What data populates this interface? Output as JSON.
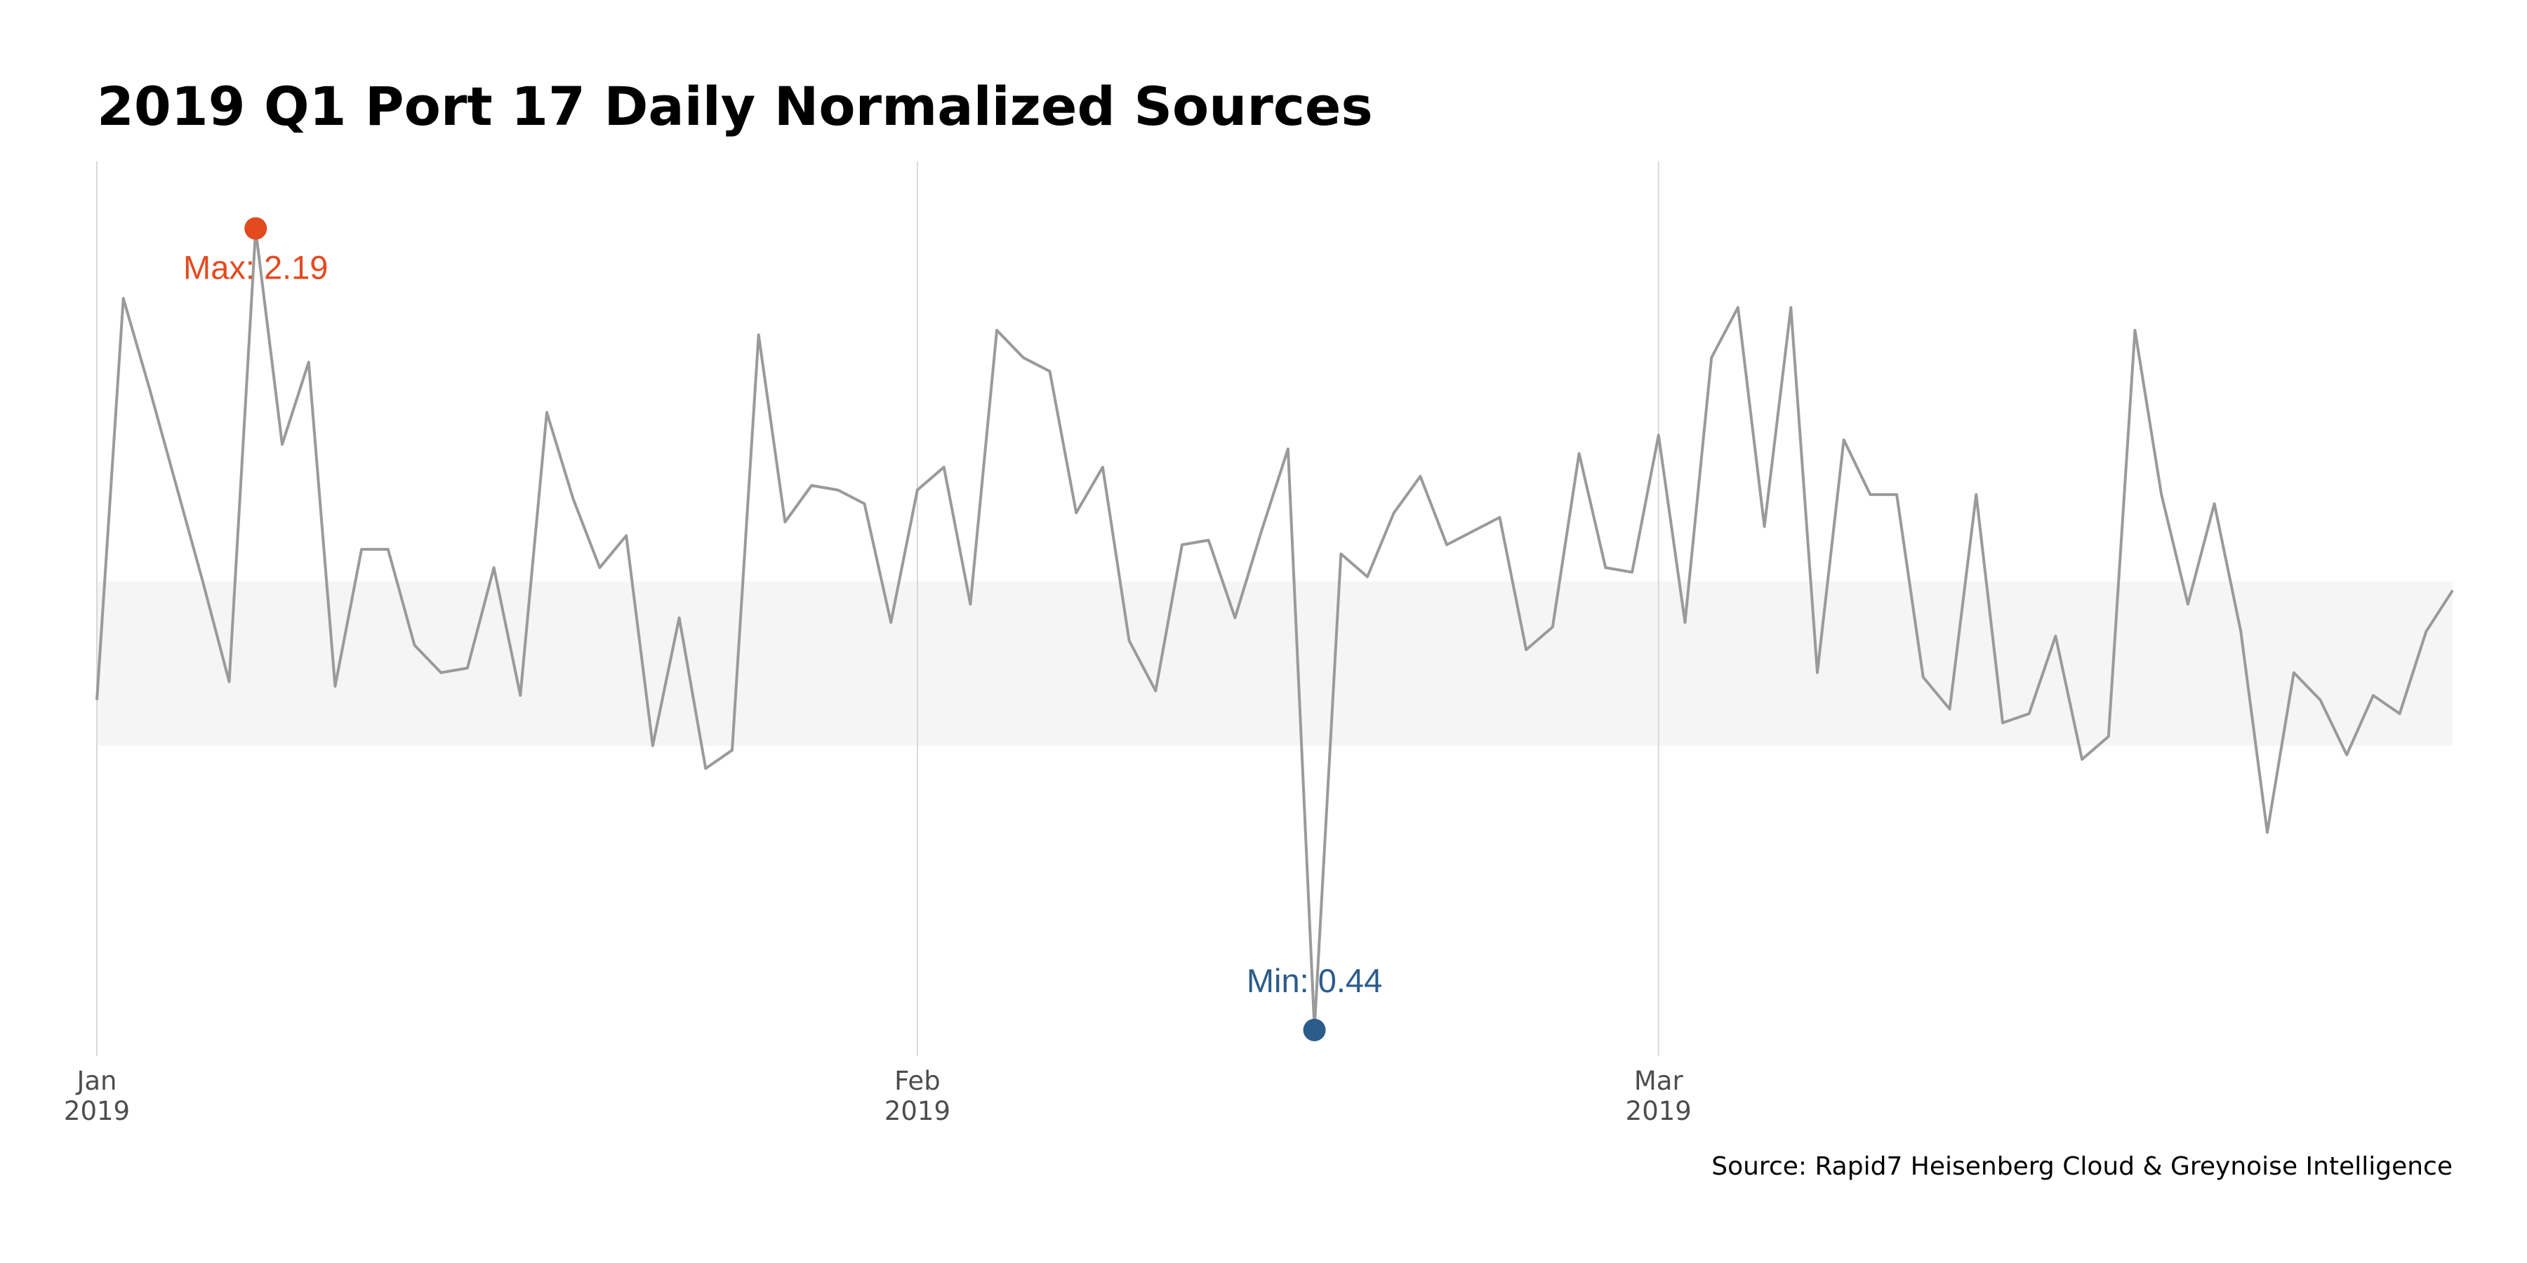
{
  "chart_data": {
    "type": "line",
    "title": "2019 Q1 Port 17 Daily Normalized Sources",
    "caption": "Source: Rapid7 Heisenberg Cloud & Greynoise Intelligence",
    "xlabel": "",
    "ylabel": "",
    "x_start": "2019-01-01",
    "x_end": "2019-03-31",
    "y_range": [
      0.38,
      2.34
    ],
    "x_ticks": [
      {
        "date": "2019-01-01",
        "label_month": "Jan",
        "label_year": "2019"
      },
      {
        "date": "2019-02-01",
        "label_month": "Feb",
        "label_year": "2019"
      },
      {
        "date": "2019-03-01",
        "label_month": "Mar",
        "label_year": "2019"
      }
    ],
    "band": [
      1.06,
      1.42
    ],
    "grid": "vertical at month ticks",
    "colors": {
      "line": "#9a9a9a",
      "band": "#f5f5f5",
      "grid": "#d9d9d9",
      "max": "#e34a1f",
      "min": "#2b5c8a"
    },
    "max_point": {
      "date": "2019-01-07",
      "value": 2.19,
      "label": "Max: 2.19"
    },
    "min_point": {
      "date": "2019-02-16",
      "value": 0.44,
      "label": "Min: 0.44"
    },
    "series": [
      {
        "points": [
          [
            "2019-01-01",
            1.16
          ],
          [
            "2019-01-02",
            2.04
          ],
          [
            "2019-01-03",
            1.84
          ],
          [
            "2019-01-04",
            1.63
          ],
          [
            "2019-01-05",
            1.42
          ],
          [
            "2019-01-06",
            1.2
          ],
          [
            "2019-01-07",
            2.19
          ],
          [
            "2019-01-08",
            1.72
          ],
          [
            "2019-01-09",
            1.9
          ],
          [
            "2019-01-10",
            1.19
          ],
          [
            "2019-01-11",
            1.49
          ],
          [
            "2019-01-12",
            1.49
          ],
          [
            "2019-01-13",
            1.28
          ],
          [
            "2019-01-14",
            1.22
          ],
          [
            "2019-01-15",
            1.23
          ],
          [
            "2019-01-16",
            1.45
          ],
          [
            "2019-01-17",
            1.17
          ],
          [
            "2019-01-18",
            1.79
          ],
          [
            "2019-01-19",
            1.6
          ],
          [
            "2019-01-20",
            1.45
          ],
          [
            "2019-01-21",
            1.52
          ],
          [
            "2019-01-22",
            1.06
          ],
          [
            "2019-01-23",
            1.34
          ],
          [
            "2019-01-24",
            1.01
          ],
          [
            "2019-01-25",
            1.05
          ],
          [
            "2019-01-26",
            1.96
          ],
          [
            "2019-01-27",
            1.55
          ],
          [
            "2019-01-28",
            1.63
          ],
          [
            "2019-01-29",
            1.62
          ],
          [
            "2019-01-30",
            1.59
          ],
          [
            "2019-01-31",
            1.33
          ],
          [
            "2019-02-01",
            1.62
          ],
          [
            "2019-02-02",
            1.67
          ],
          [
            "2019-02-03",
            1.37
          ],
          [
            "2019-02-04",
            1.97
          ],
          [
            "2019-02-05",
            1.91
          ],
          [
            "2019-02-06",
            1.88
          ],
          [
            "2019-02-07",
            1.57
          ],
          [
            "2019-02-08",
            1.67
          ],
          [
            "2019-02-09",
            1.29
          ],
          [
            "2019-02-10",
            1.18
          ],
          [
            "2019-02-11",
            1.5
          ],
          [
            "2019-02-12",
            1.51
          ],
          [
            "2019-02-13",
            1.34
          ],
          [
            "2019-02-14",
            1.53
          ],
          [
            "2019-02-15",
            1.71
          ],
          [
            "2019-02-16",
            0.44
          ],
          [
            "2019-02-17",
            1.48
          ],
          [
            "2019-02-18",
            1.43
          ],
          [
            "2019-02-19",
            1.57
          ],
          [
            "2019-02-20",
            1.65
          ],
          [
            "2019-02-21",
            1.5
          ],
          [
            "2019-02-22",
            1.53
          ],
          [
            "2019-02-23",
            1.56
          ],
          [
            "2019-02-24",
            1.27
          ],
          [
            "2019-02-25",
            1.32
          ],
          [
            "2019-02-26",
            1.7
          ],
          [
            "2019-02-27",
            1.45
          ],
          [
            "2019-02-28",
            1.44
          ],
          [
            "2019-03-01",
            1.74
          ],
          [
            "2019-03-02",
            1.33
          ],
          [
            "2019-03-03",
            1.91
          ],
          [
            "2019-03-04",
            2.02
          ],
          [
            "2019-03-05",
            1.54
          ],
          [
            "2019-03-06",
            2.02
          ],
          [
            "2019-03-07",
            1.22
          ],
          [
            "2019-03-08",
            1.73
          ],
          [
            "2019-03-09",
            1.61
          ],
          [
            "2019-03-10",
            1.61
          ],
          [
            "2019-03-11",
            1.21
          ],
          [
            "2019-03-12",
            1.14
          ],
          [
            "2019-03-13",
            1.61
          ],
          [
            "2019-03-14",
            1.11
          ],
          [
            "2019-03-15",
            1.13
          ],
          [
            "2019-03-16",
            1.3
          ],
          [
            "2019-03-17",
            1.03
          ],
          [
            "2019-03-18",
            1.08
          ],
          [
            "2019-03-19",
            1.97
          ],
          [
            "2019-03-20",
            1.61
          ],
          [
            "2019-03-21",
            1.37
          ],
          [
            "2019-03-22",
            1.59
          ],
          [
            "2019-03-23",
            1.31
          ],
          [
            "2019-03-24",
            0.87
          ],
          [
            "2019-03-25",
            1.22
          ],
          [
            "2019-03-26",
            1.16
          ],
          [
            "2019-03-27",
            1.04
          ],
          [
            "2019-03-28",
            1.17
          ],
          [
            "2019-03-29",
            1.13
          ],
          [
            "2019-03-30",
            1.31
          ],
          [
            "2019-03-31",
            1.4
          ]
        ]
      }
    ]
  }
}
